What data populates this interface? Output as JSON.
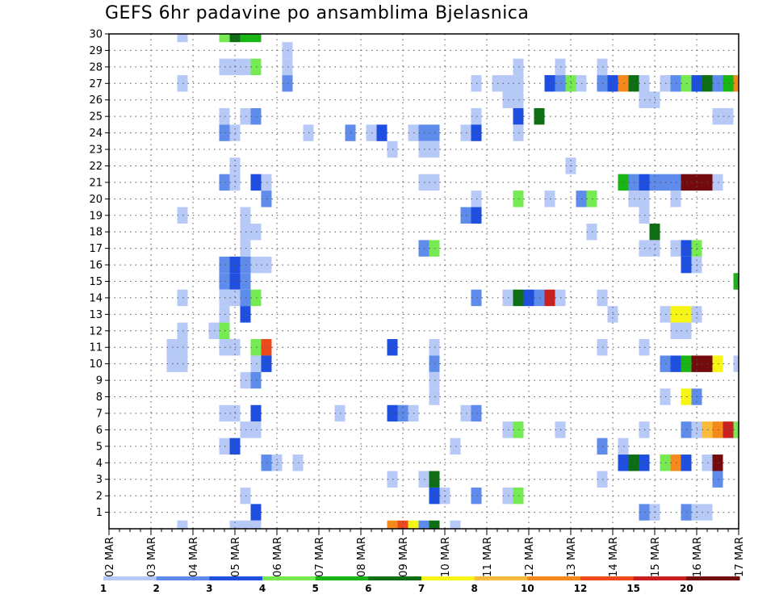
{
  "page": {
    "title": "GEFS 6hr padavine po ansamblima Bjelasnica"
  },
  "chart_data": {
    "type": "heatmap",
    "title": "GEFS 6hr padavine po ansamblima Bjelasnica",
    "xlabel": "",
    "ylabel": "",
    "x_range": [
      0,
      60
    ],
    "x_unit": "6-hour steps from 02 MAR 00Z",
    "y_range": [
      0,
      30
    ],
    "grid": true,
    "x_tick_labels": [
      "02 MAR",
      "03 MAR",
      "04 MAR",
      "05 MAR",
      "06 MAR",
      "07 MAR",
      "08 MAR",
      "09 MAR",
      "10 MAR",
      "11 MAR",
      "12 MAR",
      "13 MAR",
      "14 MAR",
      "15 MAR",
      "16 MAR",
      "17 MAR"
    ],
    "y_tick_labels": [
      1,
      2,
      3,
      4,
      5,
      6,
      7,
      8,
      9,
      10,
      11,
      12,
      13,
      14,
      15,
      16,
      17,
      18,
      19,
      20,
      21,
      22,
      23,
      24,
      25,
      26,
      27,
      28,
      29,
      30
    ],
    "colorbar": {
      "labels": [
        "1",
        "2",
        "3",
        "4",
        "5",
        "6",
        "7",
        "8",
        "10",
        "12",
        "15",
        "20"
      ],
      "colors": [
        "#b7c9f6",
        "#5f8cea",
        "#1f4fe0",
        "#76ea52",
        "#19b515",
        "#0d6e14",
        "#f7f516",
        "#f8bc3a",
        "#f5891e",
        "#ec4a1d",
        "#c8201e",
        "#730a0d"
      ]
    },
    "cells": [
      [
        7,
        30,
        1
      ],
      [
        11,
        30,
        4
      ],
      [
        12,
        30,
        6
      ],
      [
        13,
        30,
        5
      ],
      [
        14,
        30,
        5
      ],
      [
        17,
        29,
        1
      ],
      [
        11,
        28,
        1
      ],
      [
        12,
        28,
        1
      ],
      [
        13,
        28,
        1
      ],
      [
        14,
        28,
        4
      ],
      [
        17,
        28,
        1
      ],
      [
        39,
        28,
        1
      ],
      [
        43,
        28,
        1
      ],
      [
        47,
        28,
        1
      ],
      [
        7,
        27,
        1
      ],
      [
        17,
        27,
        2
      ],
      [
        35,
        27,
        1
      ],
      [
        37,
        27,
        1
      ],
      [
        38,
        27,
        1
      ],
      [
        39,
        27,
        1
      ],
      [
        42,
        27,
        3
      ],
      [
        43,
        27,
        2
      ],
      [
        44,
        27,
        4
      ],
      [
        45,
        27,
        1
      ],
      [
        47,
        27,
        2
      ],
      [
        48,
        27,
        3
      ],
      [
        49,
        27,
        9
      ],
      [
        50,
        27,
        6
      ],
      [
        51,
        27,
        1
      ],
      [
        53,
        27,
        1
      ],
      [
        54,
        27,
        2
      ],
      [
        55,
        27,
        4
      ],
      [
        56,
        27,
        3
      ],
      [
        57,
        27,
        6
      ],
      [
        58,
        27,
        2
      ],
      [
        59,
        27,
        5
      ],
      [
        60,
        27,
        9
      ],
      [
        38,
        26,
        1
      ],
      [
        39,
        26,
        1
      ],
      [
        51,
        26,
        1
      ],
      [
        52,
        26,
        1
      ],
      [
        11,
        25,
        1
      ],
      [
        13,
        25,
        1
      ],
      [
        14,
        25,
        2
      ],
      [
        35,
        25,
        1
      ],
      [
        39,
        25,
        3
      ],
      [
        41,
        25,
        6
      ],
      [
        58,
        25,
        1
      ],
      [
        59,
        25,
        1
      ],
      [
        11,
        24,
        2
      ],
      [
        12,
        24,
        1
      ],
      [
        19,
        24,
        1
      ],
      [
        23,
        24,
        2
      ],
      [
        25,
        24,
        1
      ],
      [
        26,
        24,
        3
      ],
      [
        29,
        24,
        1
      ],
      [
        30,
        24,
        2
      ],
      [
        31,
        24,
        2
      ],
      [
        34,
        24,
        1
      ],
      [
        35,
        24,
        3
      ],
      [
        39,
        24,
        1
      ],
      [
        27,
        23,
        1
      ],
      [
        30,
        23,
        1
      ],
      [
        31,
        23,
        1
      ],
      [
        12,
        22,
        1
      ],
      [
        44,
        22,
        1
      ],
      [
        11,
        21,
        2
      ],
      [
        12,
        21,
        1
      ],
      [
        14,
        21,
        3
      ],
      [
        15,
        21,
        1
      ],
      [
        30,
        21,
        1
      ],
      [
        31,
        21,
        1
      ],
      [
        49,
        21,
        5
      ],
      [
        50,
        21,
        2
      ],
      [
        51,
        21,
        3
      ],
      [
        52,
        21,
        2
      ],
      [
        53,
        21,
        2
      ],
      [
        54,
        21,
        2
      ],
      [
        55,
        21,
        12
      ],
      [
        56,
        21,
        12
      ],
      [
        57,
        21,
        12
      ],
      [
        58,
        21,
        1
      ],
      [
        15,
        20,
        2
      ],
      [
        35,
        20,
        1
      ],
      [
        39,
        20,
        4
      ],
      [
        42,
        20,
        1
      ],
      [
        45,
        20,
        2
      ],
      [
        46,
        20,
        4
      ],
      [
        50,
        20,
        1
      ],
      [
        51,
        20,
        1
      ],
      [
        54,
        20,
        1
      ],
      [
        7,
        19,
        1
      ],
      [
        13,
        19,
        1
      ],
      [
        34,
        19,
        2
      ],
      [
        35,
        19,
        3
      ],
      [
        51,
        19,
        1
      ],
      [
        13,
        18,
        1
      ],
      [
        14,
        18,
        1
      ],
      [
        46,
        18,
        1
      ],
      [
        52,
        18,
        6
      ],
      [
        13,
        17,
        1
      ],
      [
        30,
        17,
        2
      ],
      [
        31,
        17,
        4
      ],
      [
        51,
        17,
        1
      ],
      [
        52,
        17,
        1
      ],
      [
        54,
        17,
        1
      ],
      [
        55,
        17,
        3
      ],
      [
        56,
        17,
        4
      ],
      [
        11,
        16,
        2
      ],
      [
        12,
        16,
        3
      ],
      [
        13,
        16,
        2
      ],
      [
        14,
        16,
        1
      ],
      [
        15,
        16,
        1
      ],
      [
        55,
        16,
        3
      ],
      [
        56,
        16,
        1
      ],
      [
        11,
        15,
        2
      ],
      [
        12,
        15,
        3
      ],
      [
        13,
        15,
        2
      ],
      [
        60,
        15,
        5
      ],
      [
        7,
        14,
        1
      ],
      [
        11,
        14,
        1
      ],
      [
        12,
        14,
        1
      ],
      [
        13,
        14,
        2
      ],
      [
        14,
        14,
        4
      ],
      [
        35,
        14,
        2
      ],
      [
        38,
        14,
        1
      ],
      [
        39,
        14,
        6
      ],
      [
        40,
        14,
        3
      ],
      [
        41,
        14,
        2
      ],
      [
        42,
        14,
        11
      ],
      [
        43,
        14,
        1
      ],
      [
        47,
        14,
        1
      ],
      [
        11,
        13,
        1
      ],
      [
        13,
        13,
        3
      ],
      [
        48,
        13,
        1
      ],
      [
        53,
        13,
        1
      ],
      [
        54,
        13,
        7
      ],
      [
        55,
        13,
        7
      ],
      [
        56,
        13,
        1
      ],
      [
        7,
        12,
        1
      ],
      [
        10,
        12,
        1
      ],
      [
        11,
        12,
        4
      ],
      [
        54,
        12,
        1
      ],
      [
        55,
        12,
        1
      ],
      [
        6,
        11,
        1
      ],
      [
        7,
        11,
        1
      ],
      [
        11,
        11,
        1
      ],
      [
        12,
        11,
        1
      ],
      [
        14,
        11,
        4
      ],
      [
        15,
        11,
        10
      ],
      [
        27,
        11,
        3
      ],
      [
        31,
        11,
        1
      ],
      [
        47,
        11,
        1
      ],
      [
        51,
        11,
        1
      ],
      [
        6,
        10,
        1
      ],
      [
        7,
        10,
        1
      ],
      [
        14,
        10,
        1
      ],
      [
        15,
        10,
        3
      ],
      [
        31,
        10,
        2
      ],
      [
        53,
        10,
        2
      ],
      [
        54,
        10,
        3
      ],
      [
        55,
        10,
        5
      ],
      [
        56,
        10,
        12
      ],
      [
        57,
        10,
        12
      ],
      [
        58,
        10,
        7
      ],
      [
        60,
        10,
        1
      ],
      [
        13,
        9,
        1
      ],
      [
        14,
        9,
        2
      ],
      [
        31,
        9,
        1
      ],
      [
        31,
        8,
        1
      ],
      [
        53,
        8,
        1
      ],
      [
        55,
        8,
        7
      ],
      [
        56,
        8,
        2
      ],
      [
        11,
        7,
        1
      ],
      [
        12,
        7,
        1
      ],
      [
        14,
        7,
        3
      ],
      [
        22,
        7,
        1
      ],
      [
        27,
        7,
        3
      ],
      [
        28,
        7,
        2
      ],
      [
        29,
        7,
        1
      ],
      [
        34,
        7,
        1
      ],
      [
        35,
        7,
        2
      ],
      [
        13,
        6,
        1
      ],
      [
        14,
        6,
        1
      ],
      [
        38,
        6,
        1
      ],
      [
        39,
        6,
        4
      ],
      [
        43,
        6,
        1
      ],
      [
        51,
        6,
        1
      ],
      [
        55,
        6,
        2
      ],
      [
        56,
        6,
        1
      ],
      [
        57,
        6,
        8
      ],
      [
        58,
        6,
        9
      ],
      [
        59,
        6,
        11
      ],
      [
        60,
        6,
        4
      ],
      [
        11,
        5,
        1
      ],
      [
        12,
        5,
        3
      ],
      [
        33,
        5,
        1
      ],
      [
        47,
        5,
        2
      ],
      [
        49,
        5,
        1
      ],
      [
        15,
        4,
        2
      ],
      [
        16,
        4,
        1
      ],
      [
        18,
        4,
        1
      ],
      [
        49,
        4,
        3
      ],
      [
        50,
        4,
        6
      ],
      [
        51,
        4,
        3
      ],
      [
        53,
        4,
        4
      ],
      [
        54,
        4,
        9
      ],
      [
        55,
        4,
        3
      ],
      [
        57,
        4,
        1
      ],
      [
        58,
        4,
        12
      ],
      [
        27,
        3,
        1
      ],
      [
        30,
        3,
        1
      ],
      [
        31,
        3,
        6
      ],
      [
        47,
        3,
        1
      ],
      [
        58,
        3,
        2
      ],
      [
        13,
        2,
        1
      ],
      [
        31,
        2,
        3
      ],
      [
        32,
        2,
        1
      ],
      [
        35,
        2,
        2
      ],
      [
        38,
        2,
        1
      ],
      [
        39,
        2,
        4
      ],
      [
        14,
        1,
        3
      ],
      [
        51,
        1,
        2
      ],
      [
        52,
        1,
        1
      ],
      [
        55,
        1,
        2
      ],
      [
        56,
        1,
        1
      ],
      [
        57,
        1,
        1
      ],
      [
        7,
        0,
        1
      ],
      [
        12,
        0,
        1
      ],
      [
        13,
        0,
        1
      ],
      [
        14,
        0,
        1
      ],
      [
        27,
        0,
        9
      ],
      [
        28,
        0,
        10
      ],
      [
        29,
        0,
        7
      ],
      [
        30,
        0,
        2
      ],
      [
        31,
        0,
        6
      ],
      [
        33,
        0,
        1
      ]
    ]
  }
}
